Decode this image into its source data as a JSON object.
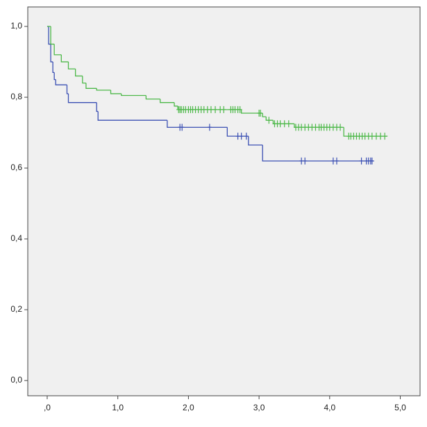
{
  "chart_data": {
    "type": "step",
    "xlim": [
      -0.275,
      5.28
    ],
    "ylim": [
      -0.043,
      1.055
    ],
    "xticks": [
      {
        "value": 0,
        "label": ",0"
      },
      {
        "value": 1,
        "label": "1,0"
      },
      {
        "value": 2,
        "label": "2,0"
      },
      {
        "value": 3,
        "label": "3,0"
      },
      {
        "value": 4,
        "label": "4,0"
      },
      {
        "value": 5,
        "label": "5,0"
      }
    ],
    "yticks": [
      {
        "value": 0,
        "label": "0,0"
      },
      {
        "value": 0.2,
        "label": "0,2"
      },
      {
        "value": 0.4,
        "label": "0,4"
      },
      {
        "value": 0.6,
        "label": "0,6"
      },
      {
        "value": 0.8,
        "label": "0,8"
      },
      {
        "value": 1,
        "label": "1,0"
      }
    ],
    "series": [
      {
        "color": "#3a4fb3",
        "x": [
          0,
          0.02,
          0.05,
          0.08,
          0.1,
          0.12,
          0.28,
          0.3,
          0.7,
          0.72,
          1.7,
          2.55,
          2.85,
          3.05,
          4.62
        ],
        "values": [
          1,
          0.95,
          0.9,
          0.87,
          0.85,
          0.835,
          0.81,
          0.785,
          0.76,
          0.735,
          0.715,
          0.69,
          0.665,
          0.62,
          0.62
        ],
        "censored": {
          "x": [
            1.88,
            1.91,
            2.3,
            2.7,
            2.75,
            2.82,
            3.6,
            3.65,
            4.05,
            4.1,
            4.45,
            4.52,
            4.55,
            4.58,
            4.6
          ],
          "values": [
            0.715,
            0.715,
            0.715,
            0.69,
            0.69,
            0.69,
            0.62,
            0.62,
            0.62,
            0.62,
            0.62,
            0.62,
            0.62,
            0.62,
            0.62
          ]
        }
      },
      {
        "color": "#4cb848",
        "x": [
          0,
          0.05,
          0.1,
          0.2,
          0.3,
          0.4,
          0.5,
          0.55,
          0.7,
          0.9,
          1.05,
          1.4,
          1.6,
          1.8,
          1.85,
          2.75,
          3.05,
          3.1,
          3.2,
          3.5,
          4.2,
          4.82
        ],
        "values": [
          1,
          0.95,
          0.92,
          0.9,
          0.88,
          0.86,
          0.84,
          0.825,
          0.82,
          0.81,
          0.805,
          0.795,
          0.785,
          0.775,
          0.765,
          0.755,
          0.745,
          0.735,
          0.725,
          0.715,
          0.69,
          0.69
        ],
        "censored": {
          "x": [
            1.86,
            1.88,
            1.9,
            1.93,
            1.96,
            2.0,
            2.03,
            2.06,
            2.1,
            2.14,
            2.18,
            2.22,
            2.27,
            2.32,
            2.38,
            2.45,
            2.5,
            2.6,
            2.63,
            2.66,
            2.7,
            2.73,
            3.0,
            3.02,
            3.14,
            3.22,
            3.26,
            3.3,
            3.36,
            3.42,
            3.52,
            3.56,
            3.6,
            3.65,
            3.7,
            3.75,
            3.8,
            3.85,
            3.88,
            3.92,
            3.96,
            4.0,
            4.05,
            4.1,
            4.15,
            4.27,
            4.3,
            4.34,
            4.38,
            4.42,
            4.46,
            4.5,
            4.55,
            4.6,
            4.66,
            4.72,
            4.78
          ],
          "values": [
            0.765,
            0.765,
            0.765,
            0.765,
            0.765,
            0.765,
            0.765,
            0.765,
            0.765,
            0.765,
            0.765,
            0.765,
            0.765,
            0.765,
            0.765,
            0.765,
            0.765,
            0.765,
            0.765,
            0.765,
            0.765,
            0.765,
            0.755,
            0.755,
            0.735,
            0.725,
            0.725,
            0.725,
            0.725,
            0.725,
            0.715,
            0.715,
            0.715,
            0.715,
            0.715,
            0.715,
            0.715,
            0.715,
            0.715,
            0.715,
            0.715,
            0.715,
            0.715,
            0.715,
            0.715,
            0.69,
            0.69,
            0.69,
            0.69,
            0.69,
            0.69,
            0.69,
            0.69,
            0.69,
            0.69,
            0.69,
            0.69
          ]
        }
      }
    ]
  }
}
